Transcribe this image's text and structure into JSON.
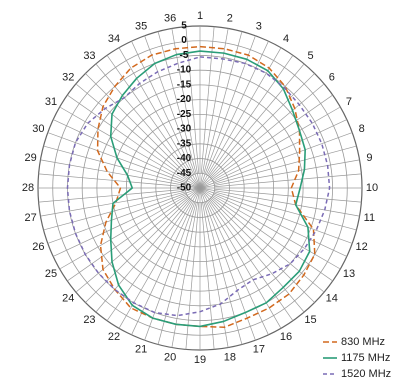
{
  "chart_data": {
    "type": "polar-line",
    "title": "",
    "angle_labels": [
      "1",
      "2",
      "3",
      "4",
      "5",
      "6",
      "7",
      "8",
      "9",
      "10",
      "11",
      "12",
      "13",
      "14",
      "15",
      "16",
      "17",
      "18",
      "19",
      "20",
      "21",
      "22",
      "23",
      "24",
      "25",
      "26",
      "27",
      "28",
      "29",
      "30",
      "31",
      "32",
      "33",
      "34",
      "35",
      "36"
    ],
    "radial_labels": [
      "5",
      "0",
      "-5",
      "-10",
      "-15",
      "-20",
      "-25",
      "-30",
      "-35",
      "-40",
      "-45",
      "-50"
    ],
    "rlim": [
      -50,
      5
    ],
    "grid": true,
    "legend_position": "bottom-right",
    "series": [
      {
        "name": "830 MHz",
        "color": "#d2691e",
        "dash": "6,3",
        "values": [
          -2,
          -2,
          -2,
          -3,
          -5,
          -8,
          -11,
          -14,
          -16,
          -19,
          -17,
          -9,
          -5,
          -4,
          -3,
          -3,
          -3,
          -2,
          -3,
          -3,
          -3,
          -3,
          -5,
          -7,
          -11,
          -16,
          -21,
          -23,
          -18,
          -13,
          -10,
          -7,
          -5,
          -3,
          -2,
          -2
        ]
      },
      {
        "name": "1175 MHz",
        "color": "#2a9d78",
        "dash": "",
        "values": [
          -3.5,
          -3.5,
          -3.5,
          -4,
          -6,
          -9,
          -11,
          -12,
          -14,
          -16,
          -17,
          -11,
          -7,
          -6,
          -6,
          -5,
          -5,
          -4,
          -3,
          -3,
          -3,
          -4,
          -7,
          -11,
          -15,
          -18,
          -20,
          -27,
          -25,
          -20,
          -15,
          -11,
          -9,
          -7,
          -5,
          -4
        ]
      },
      {
        "name": "1520 MHz",
        "color": "#7a6bb5",
        "dash": "4,3",
        "values": [
          -5.5,
          -5.5,
          -5,
          -5,
          -5.5,
          -6,
          -6,
          -6,
          -6,
          -6,
          -7,
          -8,
          -9,
          -10,
          -12,
          -14,
          -13,
          -10,
          -8,
          -6,
          -5,
          -5,
          -5,
          -5,
          -5,
          -5,
          -5,
          -5,
          -5,
          -5,
          -6,
          -8,
          -10,
          -9,
          -8,
          -7
        ]
      }
    ]
  }
}
